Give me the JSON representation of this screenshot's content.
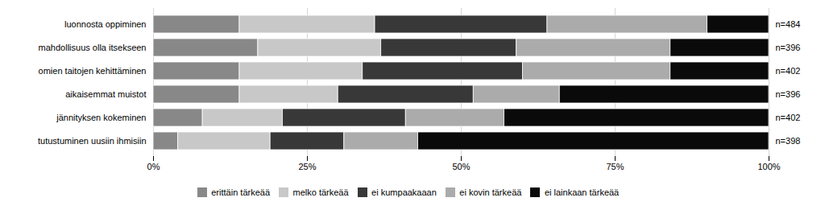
{
  "chart_data": {
    "type": "bar",
    "orientation": "horizontal",
    "stacked": true,
    "categories": [
      "luonnosta oppiminen",
      "mahdollisuus olla itsekseen",
      "omien taitojen kehittäminen",
      "aikaisemmat muistot",
      "jännityksen kokeminen",
      "tutustuminen uusiin ihmisiin"
    ],
    "series": [
      {
        "name": "erittäin tärkeää",
        "color": "#888888",
        "values": [
          14,
          17,
          14,
          14,
          8,
          4
        ]
      },
      {
        "name": "melko tärkeää",
        "color": "#c8c8c8",
        "values": [
          22,
          20,
          20,
          16,
          13,
          15
        ]
      },
      {
        "name": "ei kumpaakaaan",
        "color": "#383838",
        "values": [
          28,
          22,
          26,
          22,
          20,
          12
        ]
      },
      {
        "name": "ei kovin tärkeää",
        "color": "#ababab",
        "values": [
          26,
          25,
          24,
          14,
          16,
          12
        ]
      },
      {
        "name": "ei lainkaan tärkeää",
        "color": "#0a0a0a",
        "values": [
          10,
          16,
          16,
          34,
          43,
          57
        ]
      }
    ],
    "annotations": [
      {
        "category": "luonnosta oppiminen",
        "text": "n=484"
      },
      {
        "category": "mahdollisuus olla itsekseen",
        "text": "n=396"
      },
      {
        "category": "omien taitojen kehittäminen",
        "text": "n=402"
      },
      {
        "category": "aikaisemmat muistot",
        "text": "n=396"
      },
      {
        "category": "jännityksen kokeminen",
        "text": "n=402"
      },
      {
        "category": "tutustuminen uusiin ihmisiin",
        "text": "n=398"
      }
    ],
    "xlim": [
      0,
      100
    ],
    "xticks": [
      {
        "value": 0,
        "label": "0%"
      },
      {
        "value": 25,
        "label": "25%"
      },
      {
        "value": 50,
        "label": "50%"
      },
      {
        "value": 75,
        "label": "75%"
      },
      {
        "value": 100,
        "label": "100%"
      }
    ],
    "grid": true,
    "legend": "bottom"
  }
}
